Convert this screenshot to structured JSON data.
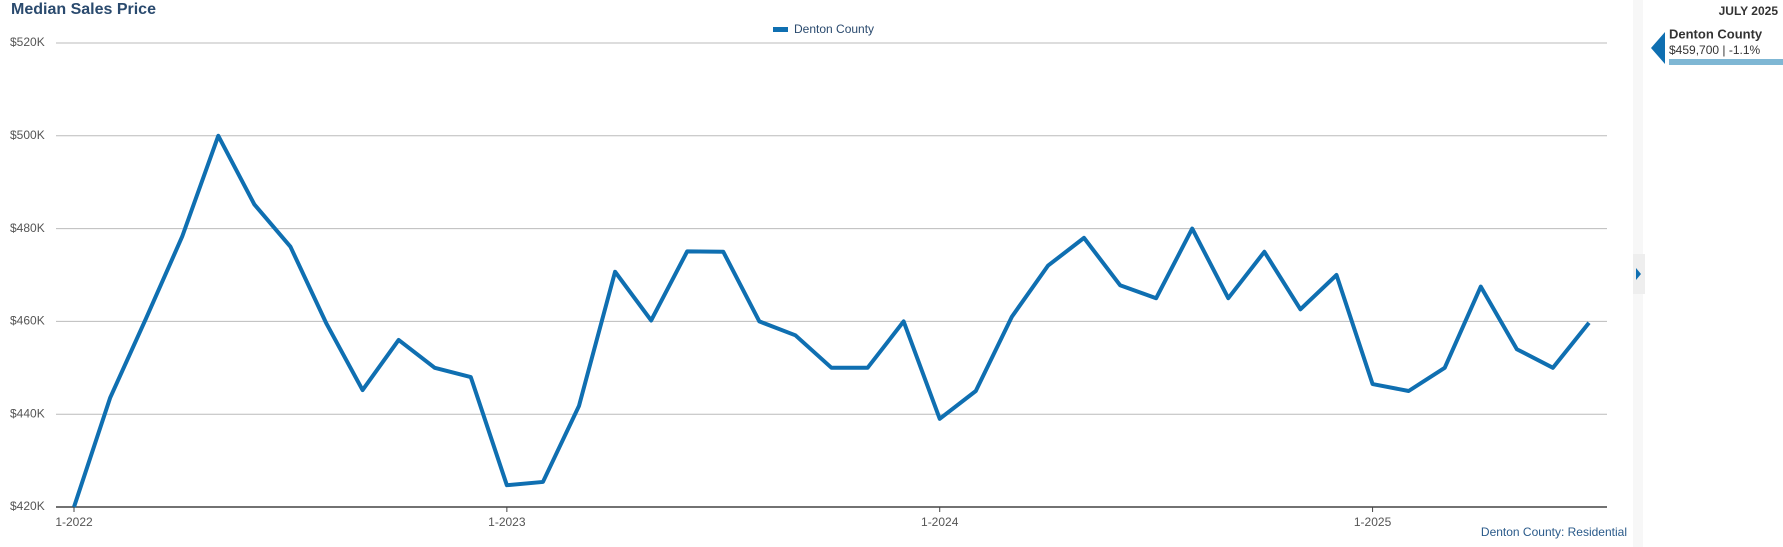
{
  "chart_data": {
    "type": "line",
    "title": "Median Sales Price",
    "footer": "Denton County: Residential",
    "categories": [
      "1-2022",
      null,
      null,
      null,
      null,
      null,
      null,
      null,
      null,
      null,
      null,
      null,
      "1-2023",
      null,
      null,
      null,
      null,
      null,
      null,
      null,
      null,
      null,
      null,
      null,
      "1-2024",
      null,
      null,
      null,
      null,
      null,
      null,
      null,
      null,
      null,
      null,
      null,
      "1-2025",
      null,
      null,
      null,
      null,
      null,
      null
    ],
    "series": [
      {
        "name": "Denton County",
        "color": "#0f6fb1",
        "values": [
          420000,
          443500,
          460700,
          478300,
          500000,
          485200,
          476100,
          459500,
          445200,
          456000,
          450000,
          448000,
          424700,
          425400,
          441800,
          470700,
          460200,
          475100,
          475000,
          460000,
          457000,
          450000,
          450000,
          460000,
          439000,
          445000,
          461000,
          472000,
          478000,
          467800,
          465000,
          480000,
          465000,
          475000,
          462600,
          470000,
          446500,
          445000,
          450000,
          467500,
          454000,
          450000,
          459700
        ]
      }
    ],
    "ylim": [
      420000,
      520000
    ],
    "yticks": [
      {
        "value": 420000,
        "label": "$420K"
      },
      {
        "value": 440000,
        "label": "$440K"
      },
      {
        "value": 460000,
        "label": "$460K"
      },
      {
        "value": 480000,
        "label": "$480K"
      },
      {
        "value": 500000,
        "label": "$500K"
      },
      {
        "value": 520000,
        "label": "$520K"
      }
    ],
    "grid": true,
    "legend": "top"
  },
  "side_panel": {
    "date": "JULY 2025",
    "name": "Denton County",
    "value": "$459,700 | -1.1%"
  }
}
